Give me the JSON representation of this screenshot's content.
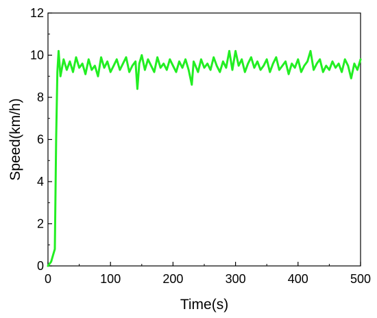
{
  "chart_data": {
    "type": "line",
    "xlabel": "Time(s)",
    "ylabel": "Speed(km/h)",
    "xlim": [
      0,
      500
    ],
    "ylim": [
      0,
      12
    ],
    "x_ticks": [
      0,
      100,
      200,
      300,
      400,
      500
    ],
    "y_ticks": [
      0,
      2,
      4,
      6,
      8,
      10,
      12
    ],
    "grid": false,
    "series": [
      {
        "color": "#22ee22",
        "x": [
          0,
          5,
          8,
          11,
          13,
          15,
          17,
          20,
          25,
          30,
          35,
          40,
          45,
          50,
          55,
          60,
          65,
          70,
          75,
          80,
          85,
          90,
          95,
          100,
          105,
          110,
          115,
          120,
          125,
          130,
          135,
          140,
          143,
          146,
          150,
          155,
          160,
          165,
          170,
          175,
          180,
          185,
          190,
          195,
          200,
          205,
          210,
          215,
          220,
          225,
          230,
          233,
          236,
          240,
          245,
          250,
          255,
          260,
          265,
          270,
          275,
          280,
          285,
          290,
          295,
          300,
          305,
          310,
          315,
          320,
          325,
          330,
          335,
          340,
          345,
          350,
          355,
          360,
          365,
          370,
          375,
          380,
          385,
          390,
          395,
          400,
          405,
          410,
          415,
          420,
          425,
          430,
          435,
          440,
          445,
          450,
          455,
          460,
          465,
          470,
          475,
          480,
          485,
          490,
          495,
          500
        ],
        "values": [
          0.0,
          0.2,
          0.5,
          0.8,
          6.0,
          9.2,
          10.2,
          9.0,
          9.8,
          9.3,
          9.7,
          9.2,
          9.9,
          9.4,
          9.6,
          9.1,
          9.8,
          9.3,
          9.5,
          9.0,
          9.9,
          9.4,
          9.7,
          9.2,
          9.5,
          9.8,
          9.3,
          9.6,
          9.9,
          9.2,
          9.5,
          9.7,
          8.4,
          9.6,
          10.0,
          9.3,
          9.8,
          9.5,
          9.2,
          9.9,
          9.4,
          9.6,
          9.3,
          9.8,
          9.5,
          9.2,
          9.7,
          9.4,
          9.8,
          9.3,
          8.6,
          9.7,
          9.5,
          9.2,
          9.8,
          9.4,
          9.6,
          9.3,
          9.9,
          9.5,
          9.2,
          9.7,
          9.4,
          10.2,
          9.3,
          10.2,
          9.5,
          9.8,
          9.2,
          9.6,
          9.9,
          9.4,
          9.7,
          9.3,
          9.5,
          9.8,
          9.2,
          9.6,
          9.9,
          9.3,
          9.5,
          9.7,
          9.1,
          9.6,
          9.4,
          9.8,
          9.2,
          9.5,
          9.7,
          10.2,
          9.3,
          9.6,
          9.8,
          9.2,
          9.5,
          9.3,
          9.7,
          9.4,
          9.6,
          9.2,
          9.8,
          9.5,
          8.9,
          9.6,
          9.3,
          9.8
        ]
      }
    ]
  }
}
